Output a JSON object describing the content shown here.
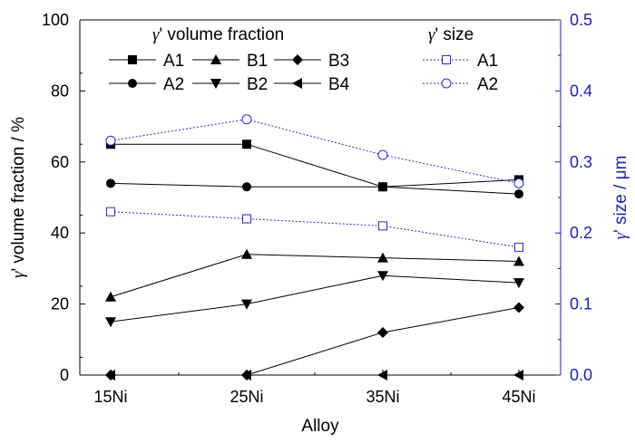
{
  "chart_data": {
    "type": "line",
    "categories": [
      "15Ni",
      "25Ni",
      "35Ni",
      "45Ni"
    ],
    "xlabel": "Alloy",
    "ylabel_left": "γ' volume fraction / %",
    "ylabel_right": "γ' size / μm",
    "ylim_left": [
      0,
      100
    ],
    "ylim_right": [
      0.0,
      0.5
    ],
    "yticks_left": [
      "0",
      "20",
      "40",
      "60",
      "80",
      "100"
    ],
    "yticks_right": [
      "0.0",
      "0.1",
      "0.2",
      "0.3",
      "0.4",
      "0.5"
    ],
    "grid": false,
    "legend_headers": {
      "volume_fraction": "γ' volume fraction",
      "size": "γ' size"
    },
    "series": [
      {
        "name": "A1",
        "axis": "left",
        "marker": "square",
        "style": "solid",
        "values": [
          65,
          65,
          53,
          55
        ]
      },
      {
        "name": "A2",
        "axis": "left",
        "marker": "circle",
        "style": "solid",
        "values": [
          54,
          53,
          53,
          51
        ]
      },
      {
        "name": "B1",
        "axis": "left",
        "marker": "triangle-up",
        "style": "solid",
        "values": [
          22,
          34,
          33,
          32
        ]
      },
      {
        "name": "B2",
        "axis": "left",
        "marker": "triangle-down",
        "style": "solid",
        "values": [
          15,
          20,
          28,
          26
        ]
      },
      {
        "name": "B3",
        "axis": "left",
        "marker": "diamond",
        "style": "solid",
        "values": [
          0,
          0,
          12,
          19
        ]
      },
      {
        "name": "B4",
        "axis": "left",
        "marker": "triangle-left",
        "style": "solid",
        "values": [
          0,
          0,
          0,
          0
        ]
      },
      {
        "name": "A1",
        "axis": "right",
        "marker": "square-open",
        "style": "dotted",
        "values": [
          0.23,
          0.22,
          0.21,
          0.18
        ]
      },
      {
        "name": "A2",
        "axis": "right",
        "marker": "circle-open",
        "style": "dotted",
        "values": [
          0.33,
          0.36,
          0.31,
          0.27
        ]
      }
    ],
    "colors": {
      "primary": "#000000",
      "secondary_axis": "#1f1fa8",
      "secondary_series": "#2a2ad0"
    }
  }
}
